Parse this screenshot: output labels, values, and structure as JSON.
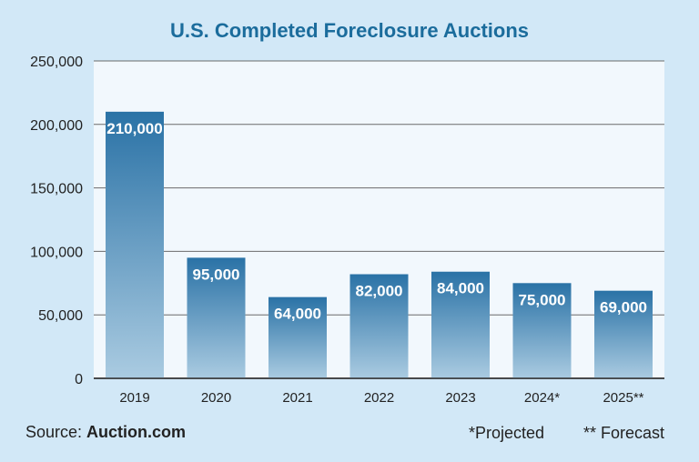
{
  "chart_data": {
    "type": "bar",
    "title": "U.S. Completed Foreclosure Auctions",
    "xlabel": "",
    "ylabel": "",
    "categories": [
      "2019",
      "2020",
      "2021",
      "2022",
      "2023",
      "2024*",
      "2025**"
    ],
    "values": [
      210000,
      95000,
      64000,
      82000,
      84000,
      75000,
      69000
    ],
    "data_labels": [
      "210,000",
      "95,000",
      "64,000",
      "82,000",
      "84,000",
      "75,000",
      "69,000"
    ],
    "ylim": [
      0,
      250000
    ],
    "yticks": [
      0,
      50000,
      100000,
      150000,
      200000,
      250000
    ],
    "ytick_labels": [
      "0",
      "50,000",
      "100,000",
      "150,000",
      "200,000",
      "250,000"
    ],
    "grid": true,
    "legend": "none"
  },
  "footer": {
    "source_prefix": "Source: ",
    "source_name": "Auction.com",
    "note_projected": "*Projected",
    "note_forecast": "** Forecast"
  },
  "colors": {
    "background": "#d2e8f7",
    "plot_background": "#f2f8fd",
    "title": "#1b6c9c",
    "bar_top": "#2a72a6",
    "bar_bottom": "#aacbe1",
    "grid": "#6b6b6b"
  }
}
